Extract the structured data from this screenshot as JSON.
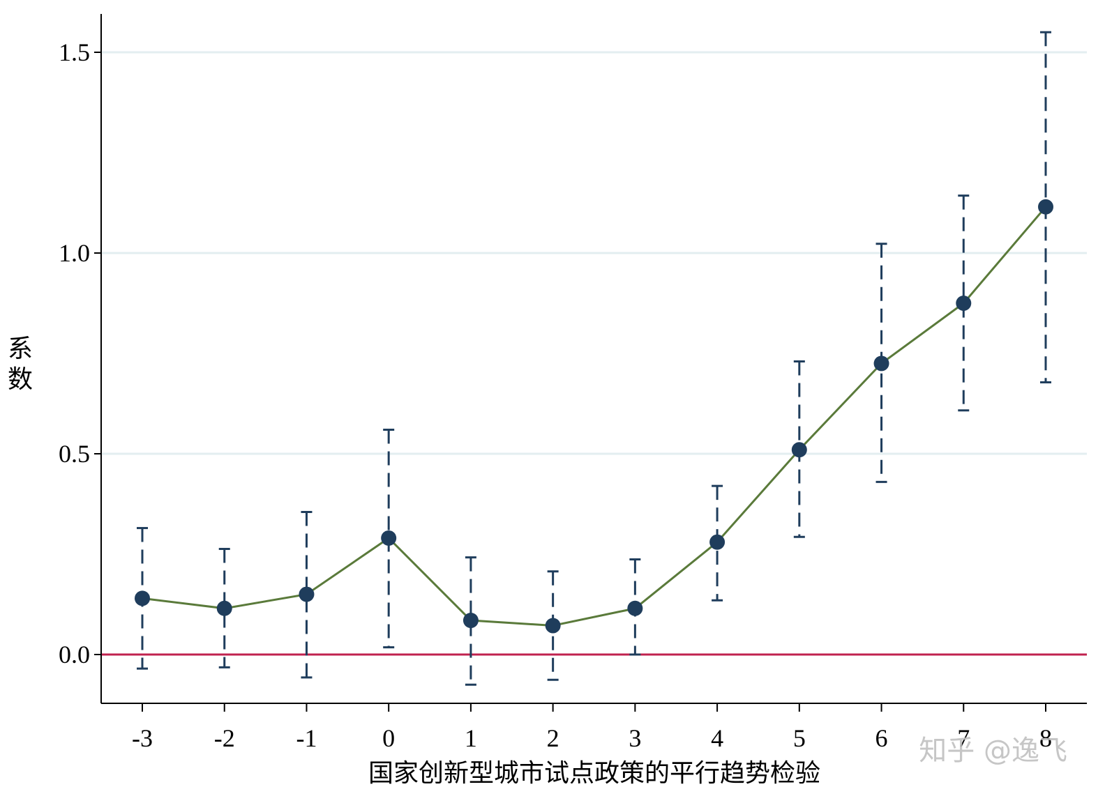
{
  "chart_data": {
    "type": "line",
    "title": "",
    "xlabel": "国家创新型城市试点政策的平行趋势检验",
    "ylabel_chars": [
      "系",
      "数"
    ],
    "x": [
      -3,
      -2,
      -1,
      0,
      1,
      2,
      3,
      4,
      5,
      6,
      7,
      8
    ],
    "x_tick_labels": [
      "-3",
      "-2",
      "-1",
      "0",
      "1",
      "2",
      "3",
      "4",
      "5",
      "6",
      "7",
      "8"
    ],
    "y_ticks": [
      0.0,
      0.5,
      1.0,
      1.5
    ],
    "y_tick_labels": [
      "0.0",
      "0.5",
      "1.0",
      "1.5"
    ],
    "xlim": [
      -3.5,
      8.5
    ],
    "ylim": [
      -0.12,
      1.6
    ],
    "series": [
      {
        "name": "系数",
        "values": [
          0.14,
          0.115,
          0.15,
          0.29,
          0.085,
          0.072,
          0.115,
          0.28,
          0.51,
          0.725,
          0.875,
          1.115
        ],
        "ci_lower": [
          -0.035,
          -0.032,
          -0.057,
          0.018,
          -0.075,
          -0.063,
          0.0,
          0.135,
          0.293,
          0.43,
          0.608,
          0.678
        ],
        "ci_upper": [
          0.315,
          0.263,
          0.355,
          0.56,
          0.242,
          0.207,
          0.237,
          0.42,
          0.73,
          1.023,
          1.143,
          1.55
        ]
      }
    ],
    "reference_line": {
      "y": 0.0
    },
    "grid": true,
    "colors": {
      "line": "#5a7a3a",
      "marker": "#1f3d5c",
      "ci": "#1f3d5c",
      "reference": "#c0224f",
      "grid": "#e3eef0"
    }
  },
  "watermark": {
    "text": "知乎 @逸飞"
  }
}
